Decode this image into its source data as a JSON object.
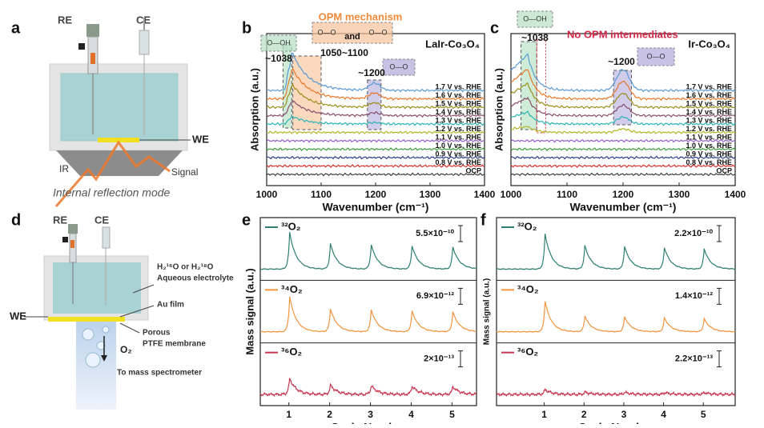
{
  "panel_a": {
    "label": "a",
    "reference_electrode": "RE",
    "counter_electrode": "CE",
    "working_electrode": "WE",
    "ir": "IR",
    "signal": "Signal",
    "caption": "Internal reflection mode"
  },
  "panel_d": {
    "label": "d",
    "reference_electrode": "RE",
    "counter_electrode": "CE",
    "working_electrode": "WE",
    "electrolyte": "H₂¹⁶O or H₂¹⁸O",
    "electrolyte_2": "Aqueous electrolyte",
    "film": "Au film",
    "membrane": "Porous",
    "membrane_2": "PTFE membrane",
    "gas": "O₂",
    "destination": "To mass spectrometer"
  },
  "chart_data": [
    {
      "type": "line",
      "panel": "b",
      "title": "LaIr-Co₃O₄",
      "xlabel": "Wavenumber (cm⁻¹)",
      "ylabel": "Absorption (a.u.)",
      "xlim": [
        1000,
        1400
      ],
      "xticks": [
        1000,
        1100,
        1200,
        1300,
        1400
      ],
      "annotations": [
        "~1038",
        "1050~1100",
        "~1200",
        "OPM mechanism",
        "and",
        "O—OH",
        "O—O"
      ],
      "series": [
        {
          "name": "1.7 V vs. RHE",
          "color": "#5b9bd5"
        },
        {
          "name": "1.6 V vs. RHE",
          "color": "#e8782a"
        },
        {
          "name": "1.5 V vs. RHE",
          "color": "#9c8f1c"
        },
        {
          "name": "1.4 V vs. RHE",
          "color": "#8a4f6e"
        },
        {
          "name": "1.3 V vs. RHE",
          "color": "#2cb4b4"
        },
        {
          "name": "1.2 V vs. RHE",
          "color": "#b5b52c"
        },
        {
          "name": "1.1 V vs. RHE",
          "color": "#9a5ec8"
        },
        {
          "name": "1.0 V vs. RHE",
          "color": "#3f9f3f"
        },
        {
          "name": "0.9 V vs. RHE",
          "color": "#2f3f8a"
        },
        {
          "name": "0.8 V vs. RHE",
          "color": "#d8302e"
        },
        {
          "name": "OCP",
          "color": "#404040"
        }
      ]
    },
    {
      "type": "line",
      "panel": "c",
      "title": "Ir-Co₃O₄",
      "xlabel": "Wavenumber (cm⁻¹)",
      "ylabel": "Absorption (a.u.)",
      "xlim": [
        1000,
        1400
      ],
      "xticks": [
        1000,
        1100,
        1200,
        1300,
        1400
      ],
      "annotations": [
        "~1038",
        "~1200",
        "No OPM intermediates",
        "O—OH",
        "O—O"
      ],
      "series": [
        {
          "name": "1.7 V vs. RHE",
          "color": "#5b9bd5"
        },
        {
          "name": "1.6 V vs. RHE",
          "color": "#e8782a"
        },
        {
          "name": "1.5 V vs. RHE",
          "color": "#9c8f1c"
        },
        {
          "name": "1.4 V vs. RHE",
          "color": "#8a4f6e"
        },
        {
          "name": "1.3 V vs. RHE",
          "color": "#2cb4b4"
        },
        {
          "name": "1.2 V vs. RHE",
          "color": "#b5b52c"
        },
        {
          "name": "1.1 V vs. RHE",
          "color": "#9a5ec8"
        },
        {
          "name": "1.0 V vs. RHE",
          "color": "#3f9f3f"
        },
        {
          "name": "0.9 V vs. RHE",
          "color": "#2f3f8a"
        },
        {
          "name": "0.8 V vs. RHE",
          "color": "#d8302e"
        },
        {
          "name": "OCP",
          "color": "#404040"
        }
      ]
    },
    {
      "type": "stacked-traces",
      "panel": "e",
      "xlabel": "Cycle Number",
      "ylabel": "Mass signal (a.u.)",
      "xlim": [
        0.3,
        5.6
      ],
      "xticks": [
        1,
        2,
        3,
        4,
        5
      ],
      "series": [
        {
          "name": "³²O₂",
          "color": "#2f7f72",
          "scale_bar": "5.5×10⁻¹⁰"
        },
        {
          "name": "³⁴O₂",
          "color": "#f0953f",
          "scale_bar": "6.9×10⁻¹²"
        },
        {
          "name": "³⁶O₂",
          "color": "#c83752",
          "scale_bar": "2×10⁻¹³"
        }
      ]
    },
    {
      "type": "stacked-traces",
      "panel": "f",
      "xlabel": "Cycle Number",
      "ylabel": "Mass signal (a.u.)",
      "xlim": [
        -0.2,
        5.8
      ],
      "xticks": [
        1,
        2,
        3,
        4,
        5
      ],
      "series": [
        {
          "name": "³²O₂",
          "color": "#2f7f72",
          "scale_bar": "2.2×10⁻¹⁰"
        },
        {
          "name": "³⁴O₂",
          "color": "#f0953f",
          "scale_bar": "1.4×10⁻¹²"
        },
        {
          "name": "³⁶O₂",
          "color": "#c83752",
          "scale_bar": "2.2×10⁻¹³"
        }
      ]
    }
  ]
}
